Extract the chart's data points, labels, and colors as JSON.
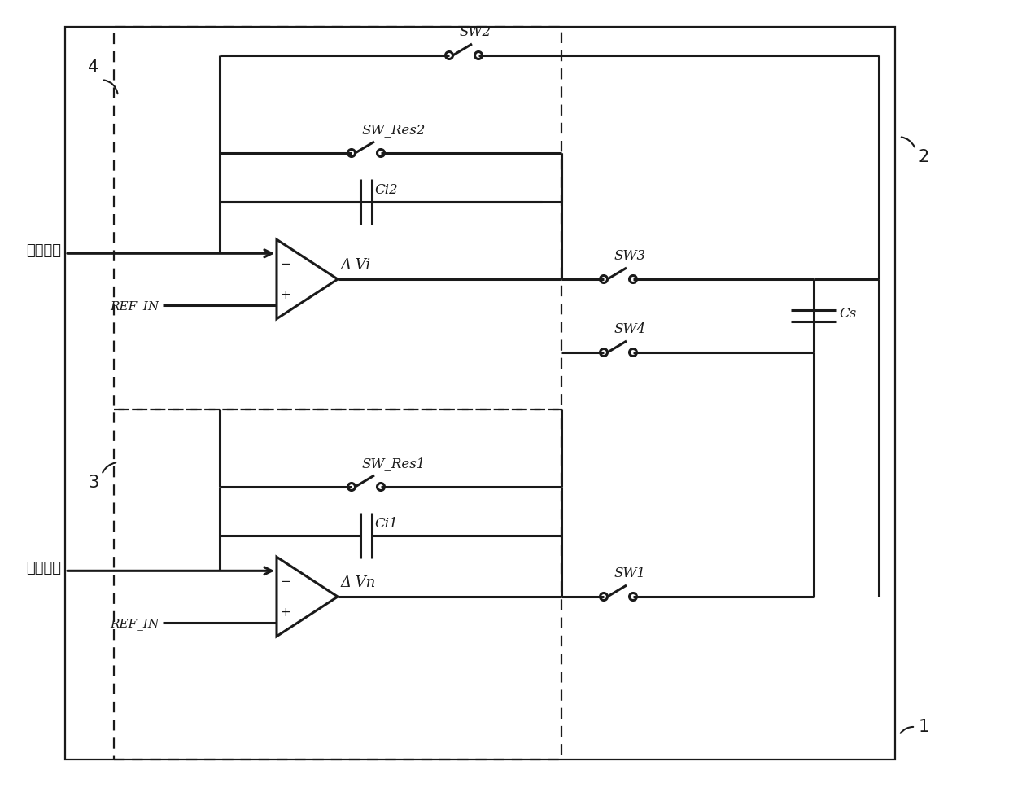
{
  "bg_color": "#ffffff",
  "line_color": "#1a1a1a",
  "fig_width": 12.4,
  "fig_height": 9.73,
  "labels": {
    "finger_signal": "指纹信号",
    "common_signal": "共模信号",
    "ref_in": "REF_IN",
    "sw1": "SW1",
    "sw2": "SW2",
    "sw3": "SW3",
    "sw4": "SW4",
    "sw_res1": "SW_Res1",
    "sw_res2": "SW_Res2",
    "ci1": "Ci1",
    "ci2": "Ci2",
    "cs": "Cs",
    "delta_vi": "Δ Vi",
    "delta_vn": "Δ Vn",
    "num1": "1",
    "num2": "2",
    "num3": "3",
    "num4": "4"
  }
}
